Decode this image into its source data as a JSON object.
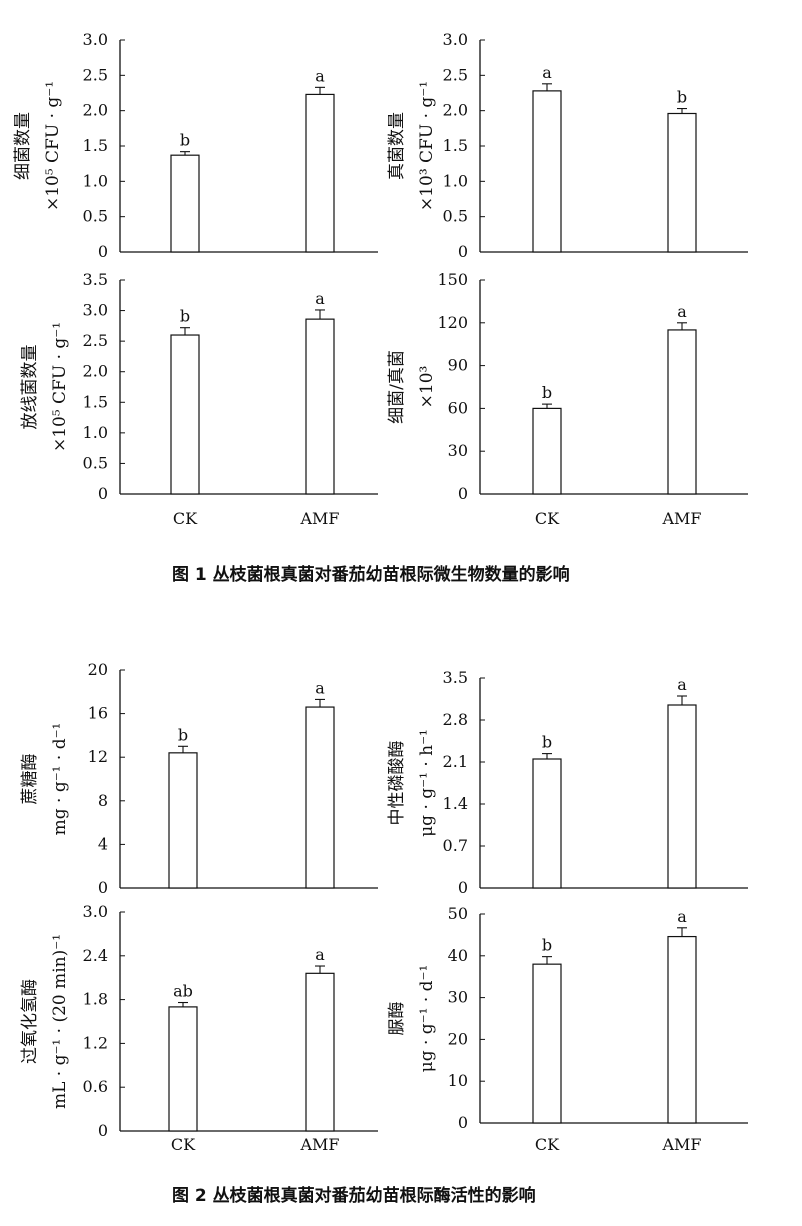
{
  "figure1": {
    "caption": "图 1 丛枝菌根真菌对番茄幼苗根际微生物数量的影响"
  },
  "figure2": {
    "caption": "图 2 丛枝菌根真菌对番茄幼苗根际酶活性的影响"
  },
  "chart_data": [
    {
      "type": "bar",
      "figure": 1,
      "panel": "top-left",
      "ylabel_lines": [
        "细菌数量",
        "×10⁵ CFU · g⁻¹"
      ],
      "categories": [
        "CK",
        "AMF"
      ],
      "values": [
        1.37,
        2.23
      ],
      "errors": [
        0.05,
        0.1
      ],
      "significance": [
        "b",
        "a"
      ],
      "ylim": [
        0,
        3.0
      ],
      "yticks": [
        "0",
        "0.5",
        "1.0",
        "1.5",
        "2.0",
        "2.5",
        "3.0"
      ],
      "show_categories": false
    },
    {
      "type": "bar",
      "figure": 1,
      "panel": "top-right",
      "ylabel_lines": [
        "真菌数量",
        "×10³ CFU · g⁻¹"
      ],
      "categories": [
        "CK",
        "AMF"
      ],
      "values": [
        2.28,
        1.96
      ],
      "errors": [
        0.1,
        0.07
      ],
      "significance": [
        "a",
        "b"
      ],
      "ylim": [
        0,
        3.0
      ],
      "yticks": [
        "0",
        "0.5",
        "1.0",
        "1.5",
        "2.0",
        "2.5",
        "3.0"
      ],
      "show_categories": false
    },
    {
      "type": "bar",
      "figure": 1,
      "panel": "bottom-left",
      "ylabel_lines": [
        "放线菌数量",
        "×10⁵ CFU · g⁻¹"
      ],
      "categories": [
        "CK",
        "AMF"
      ],
      "values": [
        2.6,
        2.86
      ],
      "errors": [
        0.12,
        0.15
      ],
      "significance": [
        "b",
        "a"
      ],
      "ylim": [
        0,
        3.5
      ],
      "yticks": [
        "0",
        "0.5",
        "1.0",
        "1.5",
        "2.0",
        "2.5",
        "3.0",
        "3.5"
      ],
      "show_categories": true
    },
    {
      "type": "bar",
      "figure": 1,
      "panel": "bottom-right",
      "ylabel_lines": [
        "细菌/真菌",
        "×10³"
      ],
      "categories": [
        "CK",
        "AMF"
      ],
      "values": [
        60,
        115
      ],
      "errors": [
        3,
        5
      ],
      "significance": [
        "b",
        "a"
      ],
      "ylim": [
        0,
        150
      ],
      "yticks": [
        "0",
        "30",
        "60",
        "90",
        "120",
        "150"
      ],
      "show_categories": true
    },
    {
      "type": "bar",
      "figure": 2,
      "panel": "top-left",
      "ylabel_lines": [
        "蔗糖酶",
        "mg · g⁻¹ · d⁻¹"
      ],
      "categories": [
        "CK",
        "AMF"
      ],
      "values": [
        12.4,
        16.6
      ],
      "errors": [
        0.6,
        0.7
      ],
      "significance": [
        "b",
        "a"
      ],
      "ylim": [
        0,
        20
      ],
      "yticks": [
        "0",
        "4",
        "8",
        "12",
        "16",
        "20"
      ],
      "show_categories": false
    },
    {
      "type": "bar",
      "figure": 2,
      "panel": "top-right",
      "ylabel_lines": [
        "中性磷酸酶",
        "μg · g⁻¹ · h⁻¹"
      ],
      "categories": [
        "CK",
        "AMF"
      ],
      "values": [
        2.15,
        3.05
      ],
      "errors": [
        0.09,
        0.15
      ],
      "significance": [
        "b",
        "a"
      ],
      "ylim": [
        0,
        3.5
      ],
      "yticks": [
        "0",
        "0.7",
        "1.4",
        "2.1",
        "2.8",
        "3.5"
      ],
      "show_categories": false
    },
    {
      "type": "bar",
      "figure": 2,
      "panel": "bottom-left",
      "ylabel_lines": [
        "过氧化氢酶",
        "mL · g⁻¹ · (20 min)⁻¹"
      ],
      "categories": [
        "CK",
        "AMF"
      ],
      "values": [
        1.7,
        2.16
      ],
      "errors": [
        0.06,
        0.1
      ],
      "significance": [
        "ab",
        "a"
      ],
      "ylim": [
        0,
        3.0
      ],
      "yticks": [
        "0",
        "0.6",
        "1.2",
        "1.8",
        "2.4",
        "3.0"
      ],
      "show_categories": true
    },
    {
      "type": "bar",
      "figure": 2,
      "panel": "bottom-right",
      "ylabel_lines": [
        "脲酶",
        "μg · g⁻¹ · d⁻¹"
      ],
      "categories": [
        "CK",
        "AMF"
      ],
      "values": [
        38,
        44.6
      ],
      "errors": [
        1.8,
        2.1
      ],
      "significance": [
        "b",
        "a"
      ],
      "ylim": [
        0,
        50
      ],
      "yticks": [
        "0",
        "10",
        "20",
        "30",
        "40",
        "50"
      ],
      "show_categories": true
    }
  ]
}
